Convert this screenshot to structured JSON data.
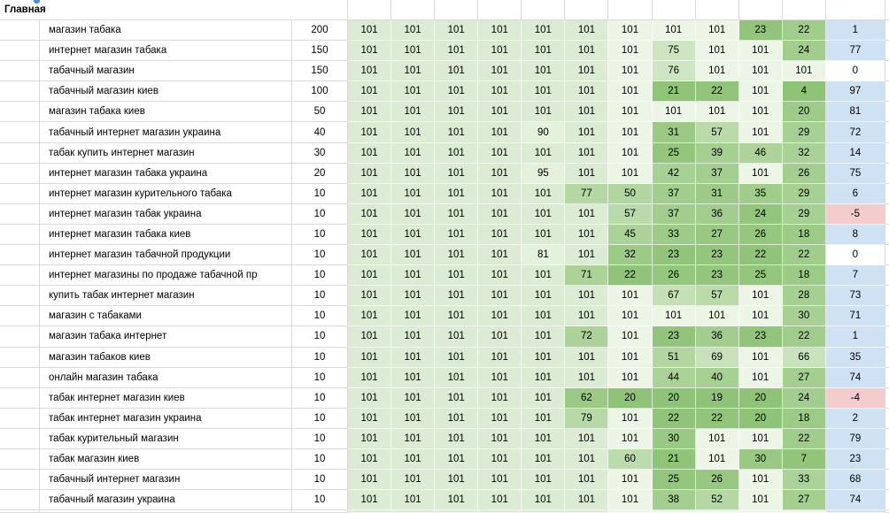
{
  "table": {
    "title": "Главная",
    "max_position": 101,
    "rows": [
      {
        "keyword": "магазин табака",
        "volume": "200",
        "positions": [
          101,
          101,
          101,
          101,
          101,
          101,
          101,
          101,
          101,
          23,
          22
        ],
        "delta": 1
      },
      {
        "keyword": "интернет магазин табака",
        "volume": "150",
        "positions": [
          101,
          101,
          101,
          101,
          101,
          101,
          101,
          75,
          101,
          101,
          24
        ],
        "delta": 77
      },
      {
        "keyword": "табачный магазин",
        "volume": "150",
        "positions": [
          101,
          101,
          101,
          101,
          101,
          101,
          101,
          76,
          101,
          101,
          101
        ],
        "delta": 0
      },
      {
        "keyword": "табачный магазин киев",
        "volume": "100",
        "positions": [
          101,
          101,
          101,
          101,
          101,
          101,
          101,
          21,
          22,
          101,
          4
        ],
        "delta": 97
      },
      {
        "keyword": "магазин табака киев",
        "volume": "50",
        "positions": [
          101,
          101,
          101,
          101,
          101,
          101,
          101,
          101,
          101,
          101,
          20
        ],
        "delta": 81
      },
      {
        "keyword": "табачный интернет магазин украина",
        "volume": "40",
        "positions": [
          101,
          101,
          101,
          101,
          90,
          101,
          101,
          31,
          57,
          101,
          29
        ],
        "delta": 72
      },
      {
        "keyword": "табак купить интернет магазин",
        "volume": "30",
        "positions": [
          101,
          101,
          101,
          101,
          101,
          101,
          101,
          25,
          39,
          46,
          32
        ],
        "delta": 14
      },
      {
        "keyword": "интернет магазин табака украина",
        "volume": "20",
        "positions": [
          101,
          101,
          101,
          101,
          95,
          101,
          101,
          42,
          37,
          101,
          26
        ],
        "delta": 75
      },
      {
        "keyword": "интернет магазин курительного табака",
        "volume": "10",
        "positions": [
          101,
          101,
          101,
          101,
          101,
          77,
          50,
          37,
          31,
          35,
          29
        ],
        "delta": 6
      },
      {
        "keyword": "интернет магазин табак украина",
        "volume": "10",
        "positions": [
          101,
          101,
          101,
          101,
          101,
          101,
          57,
          37,
          36,
          24,
          29
        ],
        "delta": -5
      },
      {
        "keyword": "интернет магазин табака киев",
        "volume": "10",
        "positions": [
          101,
          101,
          101,
          101,
          101,
          101,
          45,
          33,
          27,
          26,
          18
        ],
        "delta": 8
      },
      {
        "keyword": "интернет магазин табачной продукции",
        "volume": "10",
        "positions": [
          101,
          101,
          101,
          101,
          81,
          101,
          32,
          23,
          23,
          22,
          22
        ],
        "delta": 0
      },
      {
        "keyword": "интернет магазины по продаже табачной пр",
        "volume": "10",
        "positions": [
          101,
          101,
          101,
          101,
          101,
          71,
          22,
          26,
          23,
          25,
          18
        ],
        "delta": 7
      },
      {
        "keyword": "купить табак интернет магазин",
        "volume": "10",
        "positions": [
          101,
          101,
          101,
          101,
          101,
          101,
          101,
          67,
          57,
          101,
          28
        ],
        "delta": 73
      },
      {
        "keyword": "магазин с табаками",
        "volume": "10",
        "positions": [
          101,
          101,
          101,
          101,
          101,
          101,
          101,
          101,
          101,
          101,
          30
        ],
        "delta": 71
      },
      {
        "keyword": "магазин табака интернет",
        "volume": "10",
        "positions": [
          101,
          101,
          101,
          101,
          101,
          72,
          101,
          23,
          36,
          23,
          22
        ],
        "delta": 1
      },
      {
        "keyword": "магазин табаков киев",
        "volume": "10",
        "positions": [
          101,
          101,
          101,
          101,
          101,
          101,
          101,
          51,
          69,
          101,
          66
        ],
        "delta": 35
      },
      {
        "keyword": "онлайн магазин табака",
        "volume": "10",
        "positions": [
          101,
          101,
          101,
          101,
          101,
          101,
          101,
          44,
          40,
          101,
          27
        ],
        "delta": 74
      },
      {
        "keyword": "табак интернет магазин киев",
        "volume": "10",
        "positions": [
          101,
          101,
          101,
          101,
          101,
          62,
          20,
          20,
          19,
          20,
          24
        ],
        "delta": -4
      },
      {
        "keyword": "табак интернет магазин украина",
        "volume": "10",
        "positions": [
          101,
          101,
          101,
          101,
          101,
          79,
          101,
          22,
          22,
          20,
          18
        ],
        "delta": 2
      },
      {
        "keyword": "табак курительный магазин",
        "volume": "10",
        "positions": [
          101,
          101,
          101,
          101,
          101,
          101,
          101,
          30,
          101,
          101,
          22
        ],
        "delta": 79
      },
      {
        "keyword": "табак магазин киев",
        "volume": "10",
        "positions": [
          101,
          101,
          101,
          101,
          101,
          101,
          60,
          21,
          101,
          30,
          7
        ],
        "delta": 23
      },
      {
        "keyword": "табачный интернет магазин",
        "volume": "10",
        "positions": [
          101,
          101,
          101,
          101,
          101,
          101,
          101,
          25,
          26,
          101,
          33
        ],
        "delta": 68
      },
      {
        "keyword": "табачный магазин украина",
        "volume": "10",
        "positions": [
          101,
          101,
          101,
          101,
          101,
          101,
          101,
          38,
          52,
          101,
          27
        ],
        "delta": 74
      }
    ]
  },
  "colors": {
    "green_light": "#dbebd4",
    "green_mid": "#9cca85",
    "green_pale": "#ecf5e6",
    "green_pale_hi": "#e4f1dd",
    "green_dark": "#8fc377",
    "delta_positive": "#cfe2f3",
    "delta_negative": "#f4cccc",
    "delta_zero": "#ffffff",
    "gridline": "#d9d9d9",
    "marker_blue": "#4a86e8"
  }
}
